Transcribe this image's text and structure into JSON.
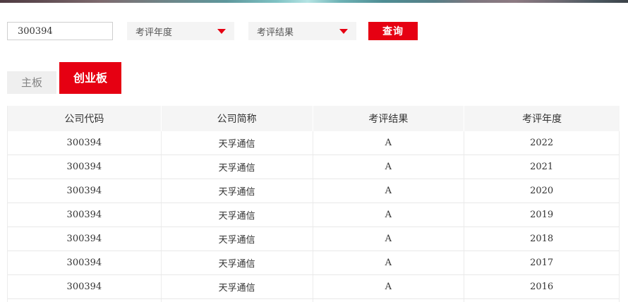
{
  "colors": {
    "accent_red": "#e60012",
    "header_bg": "#f5f5f5",
    "row_border": "#e8e8e8"
  },
  "search_bar": {
    "code_input": {
      "value": "300394"
    },
    "dropdowns": [
      {
        "label": "考评年度"
      },
      {
        "label": "考评结果"
      }
    ],
    "query_button_label": "查询"
  },
  "tabs": [
    {
      "label": "主板",
      "active": false
    },
    {
      "label": "创业板",
      "active": true
    }
  ],
  "table": {
    "columns": [
      "公司代码",
      "公司简称",
      "考评结果",
      "考评年度"
    ],
    "rows": [
      {
        "code": "300394",
        "name": "天孚通信",
        "result": "A",
        "year": "2022"
      },
      {
        "code": "300394",
        "name": "天孚通信",
        "result": "A",
        "year": "2021"
      },
      {
        "code": "300394",
        "name": "天孚通信",
        "result": "A",
        "year": "2020"
      },
      {
        "code": "300394",
        "name": "天孚通信",
        "result": "A",
        "year": "2019"
      },
      {
        "code": "300394",
        "name": "天孚通信",
        "result": "A",
        "year": "2018"
      },
      {
        "code": "300394",
        "name": "天孚通信",
        "result": "A",
        "year": "2017"
      },
      {
        "code": "300394",
        "name": "天孚通信",
        "result": "A",
        "year": "2016"
      }
    ]
  }
}
